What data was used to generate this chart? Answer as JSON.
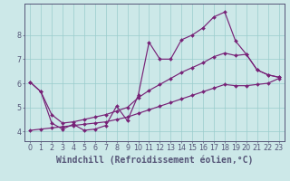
{
  "xlabel": "Windchill (Refroidissement éolien,°C)",
  "bg_color": "#cce8e8",
  "line_color": "#772277",
  "grid_color": "#99cccc",
  "axis_color": "#555577",
  "xlim": [
    -0.5,
    23.5
  ],
  "ylim": [
    3.6,
    9.3
  ],
  "xticks": [
    0,
    1,
    2,
    3,
    4,
    5,
    6,
    7,
    8,
    9,
    10,
    11,
    12,
    13,
    14,
    15,
    16,
    17,
    18,
    19,
    20,
    21,
    22,
    23
  ],
  "yticks": [
    4,
    5,
    6,
    7,
    8
  ],
  "line1_x": [
    0,
    1,
    2,
    3,
    4,
    5,
    6,
    7,
    8,
    9,
    10,
    11,
    12,
    13,
    14,
    15,
    16,
    17,
    18,
    19,
    20,
    21,
    22,
    23
  ],
  "line1_y": [
    6.05,
    5.65,
    4.35,
    4.1,
    4.3,
    4.05,
    4.1,
    4.25,
    5.05,
    4.45,
    5.5,
    7.7,
    7.0,
    7.0,
    7.8,
    8.0,
    8.3,
    8.75,
    8.95,
    7.75,
    7.2,
    6.55,
    6.35,
    6.25
  ],
  "line2_x": [
    0,
    1,
    2,
    3,
    4,
    5,
    6,
    7,
    8,
    9,
    10,
    11,
    12,
    13,
    14,
    15,
    16,
    17,
    18,
    19,
    20,
    21,
    22,
    23
  ],
  "line2_y": [
    6.05,
    5.65,
    4.7,
    4.35,
    4.4,
    4.5,
    4.6,
    4.7,
    4.85,
    5.0,
    5.4,
    5.7,
    5.95,
    6.2,
    6.45,
    6.65,
    6.85,
    7.1,
    7.25,
    7.15,
    7.2,
    6.55,
    6.35,
    6.25
  ],
  "line3_x": [
    0,
    1,
    2,
    3,
    4,
    5,
    6,
    7,
    8,
    9,
    10,
    11,
    12,
    13,
    14,
    15,
    16,
    17,
    18,
    19,
    20,
    21,
    22,
    23
  ],
  "line3_y": [
    4.05,
    4.1,
    4.15,
    4.2,
    4.25,
    4.3,
    4.35,
    4.4,
    4.5,
    4.6,
    4.75,
    4.9,
    5.05,
    5.2,
    5.35,
    5.5,
    5.65,
    5.8,
    5.95,
    5.9,
    5.9,
    5.95,
    6.0,
    6.2
  ],
  "xlabel_fontsize": 7.0,
  "tick_fontsize": 5.8,
  "marker": "D",
  "markersize": 2.0,
  "linewidth": 0.85
}
